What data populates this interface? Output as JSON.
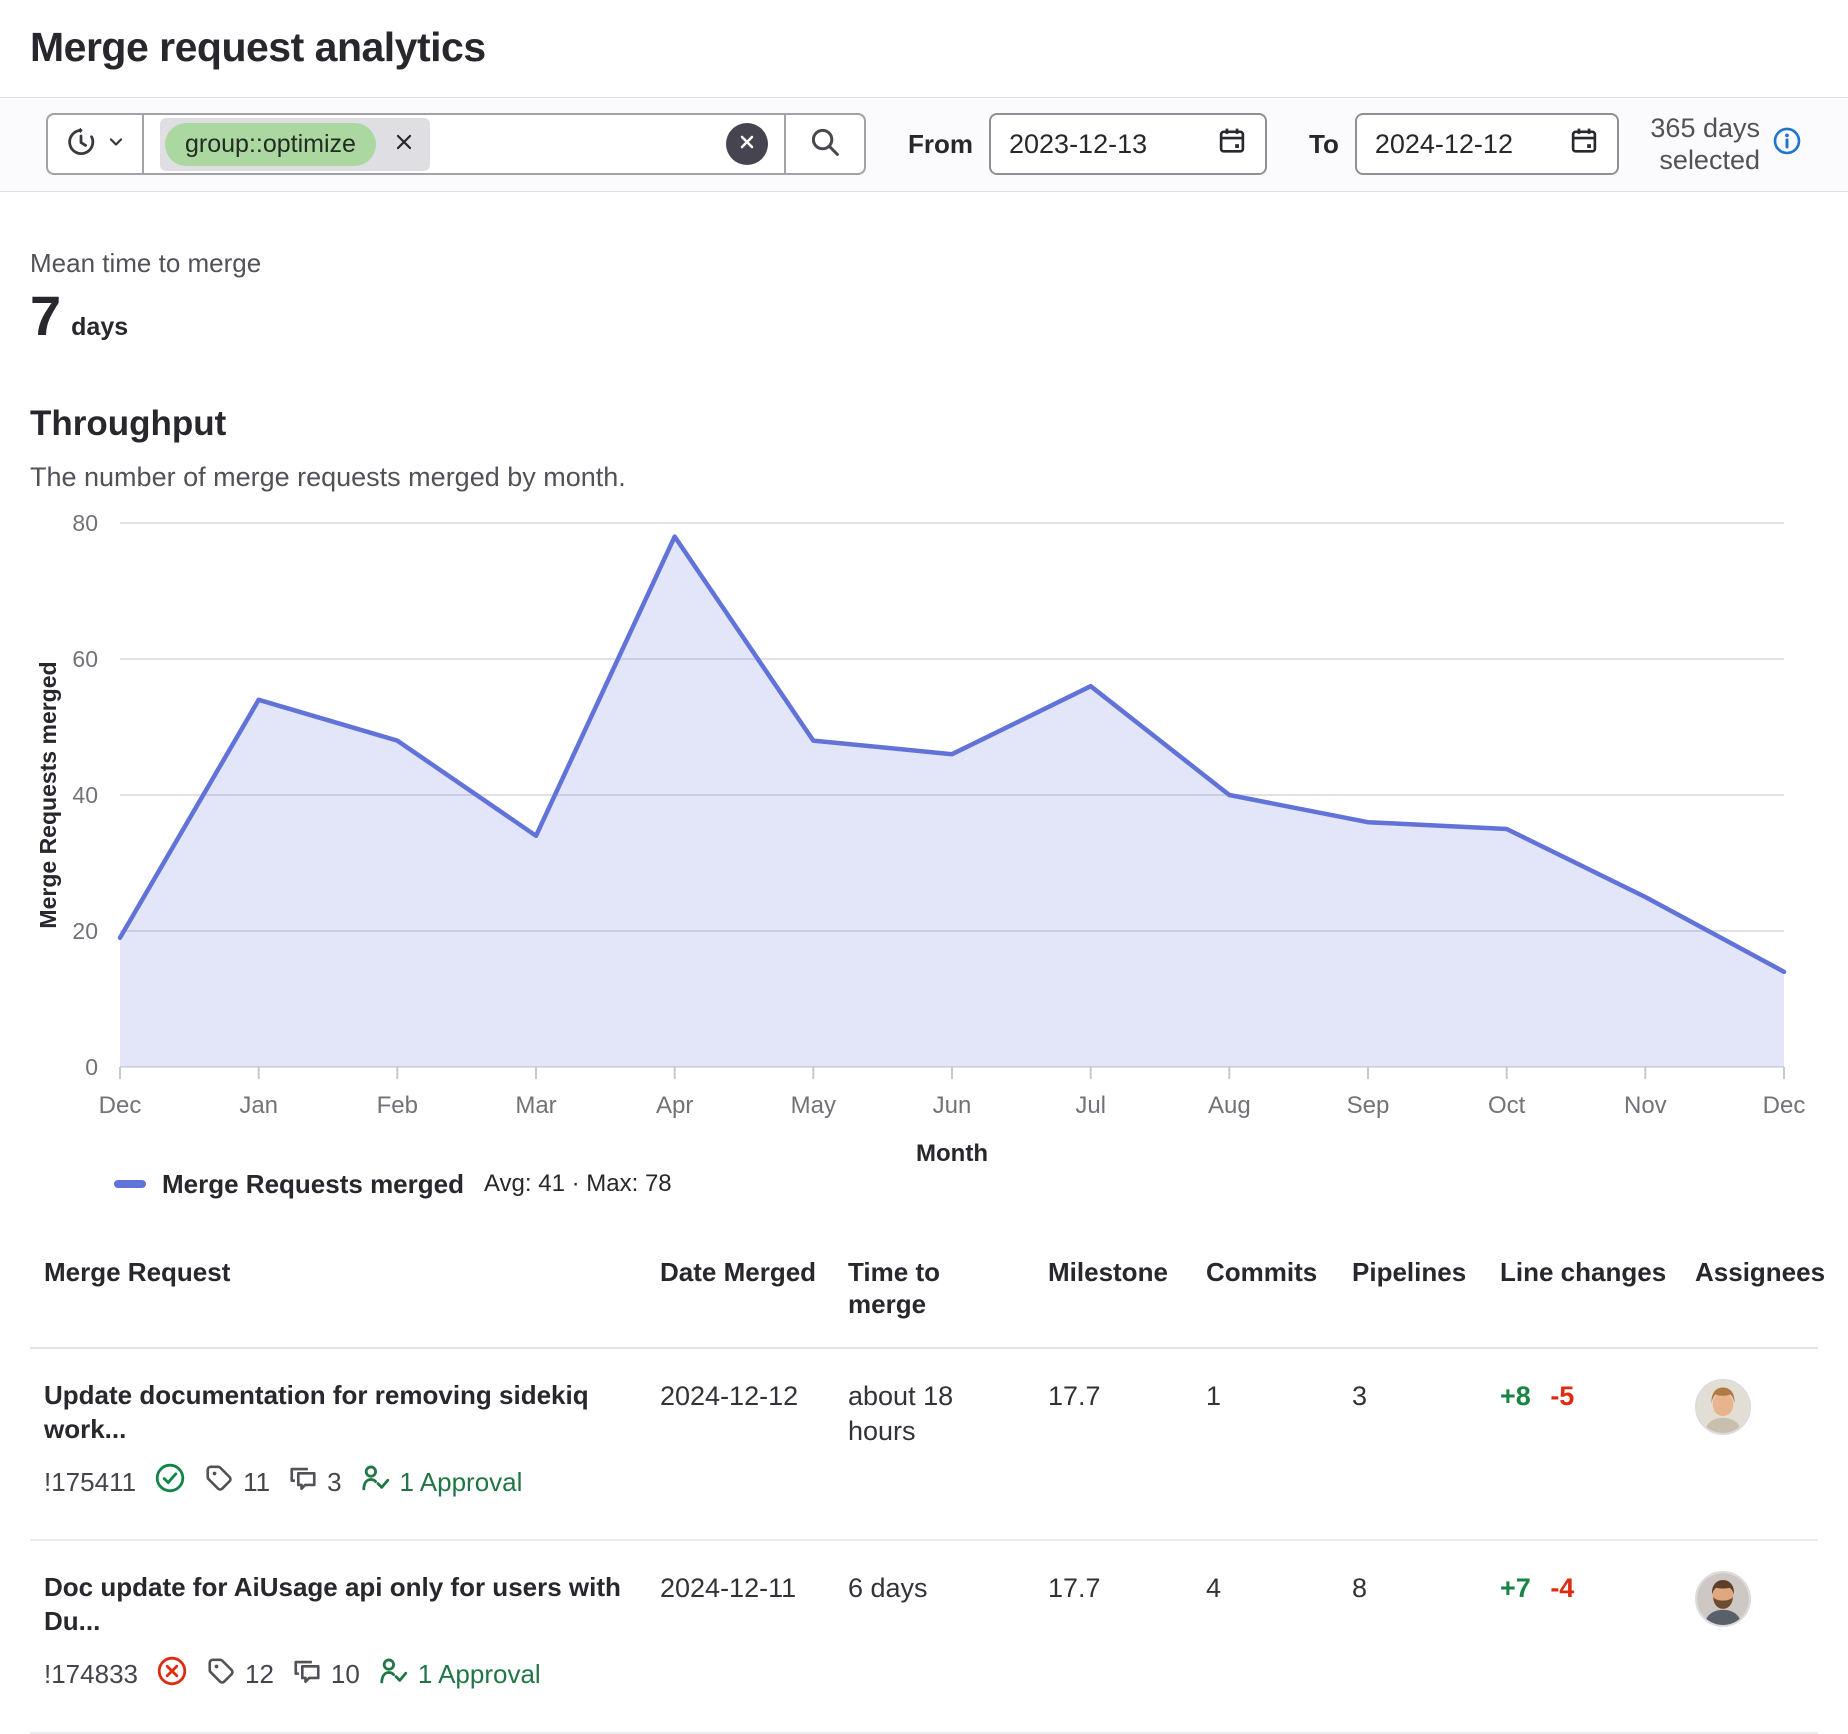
{
  "page": {
    "title": "Merge request analytics"
  },
  "filter_bar": {
    "token": {
      "label": "group::optimize"
    },
    "from": {
      "label": "From",
      "value": "2023-12-13"
    },
    "to": {
      "label": "To",
      "value": "2024-12-12"
    },
    "days_selected": "365 days selected",
    "icons": [
      "history-icon",
      "chevron-down-icon",
      "clear-icon",
      "search-icon",
      "calendar-icon",
      "info-icon"
    ]
  },
  "stat": {
    "label": "Mean time to merge",
    "value": "7",
    "unit": "days"
  },
  "throughput": {
    "heading": "Throughput",
    "subtitle": "The number of merge requests merged by month."
  },
  "chart_data": {
    "type": "area",
    "x": [
      "Dec",
      "Jan",
      "Feb",
      "Mar",
      "Apr",
      "May",
      "Jun",
      "Jul",
      "Aug",
      "Sep",
      "Oct",
      "Nov",
      "Dec"
    ],
    "series": [
      {
        "name": "Merge Requests merged",
        "values": [
          19,
          54,
          48,
          34,
          78,
          48,
          46,
          56,
          40,
          36,
          35,
          25,
          14
        ]
      }
    ],
    "xlabel": "Month",
    "ylabel": "Merge Requests merged",
    "ylim": [
      0,
      80
    ],
    "yticks": [
      0,
      20,
      40,
      60,
      80
    ],
    "grid": true,
    "legend": {
      "position": "bottom",
      "label": "Merge Requests merged",
      "stats": "Avg: 41 · Max: 78"
    },
    "line_color": "#6172d8",
    "fill_color": "rgba(97,114,216,0.18)"
  },
  "table": {
    "columns": [
      "Merge Request",
      "Date Merged",
      "Time to merge",
      "Milestone",
      "Commits",
      "Pipelines",
      "Line changes",
      "Assignees"
    ],
    "rows": [
      {
        "title": "Update documentation for removing sidekiq work...",
        "mr_id": "!175411",
        "status_icon": "check-circle",
        "labels_count": "11",
        "comments_count": "3",
        "approvals": "1 Approval",
        "date_merged": "2024-12-12",
        "time_to_merge": "about 18 hours",
        "milestone": "17.7",
        "commits": "1",
        "pipelines": "3",
        "additions": "+8",
        "deletions": "-5"
      },
      {
        "title": "Doc update for AiUsage api only for users with Du...",
        "mr_id": "!174833",
        "status_icon": "x-circle",
        "labels_count": "12",
        "comments_count": "10",
        "approvals": "1 Approval",
        "date_merged": "2024-12-11",
        "time_to_merge": "6 days",
        "milestone": "17.7",
        "commits": "4",
        "pipelines": "8",
        "additions": "+7",
        "deletions": "-4"
      }
    ]
  }
}
